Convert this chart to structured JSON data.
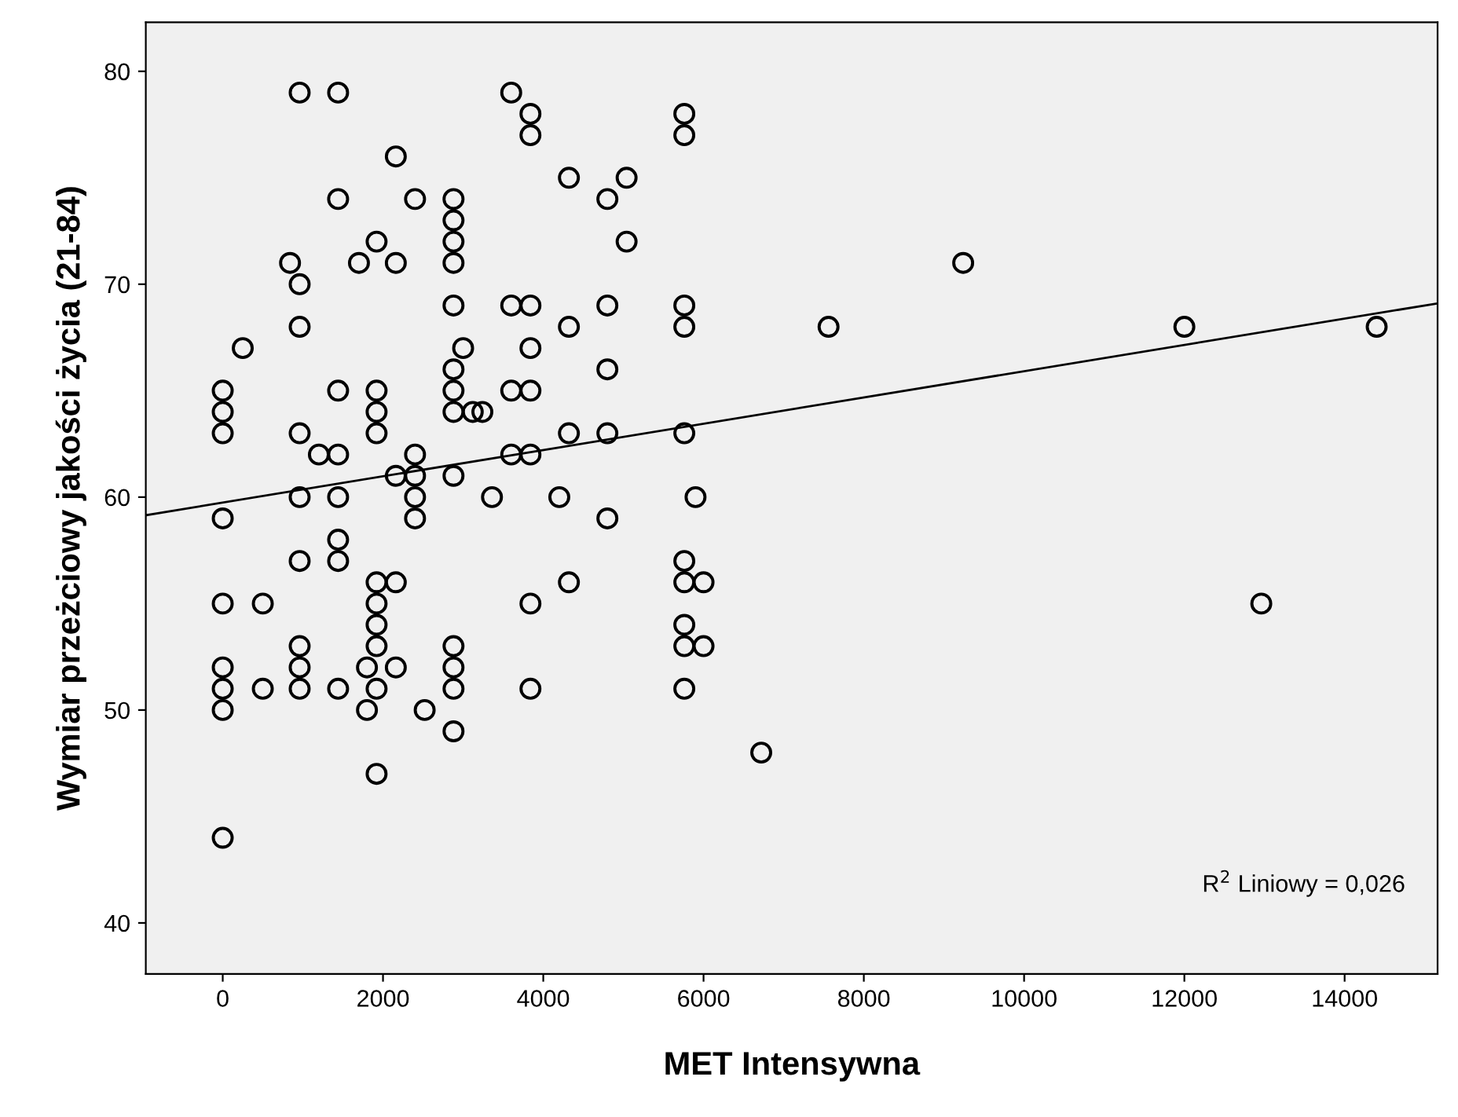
{
  "chart_data": {
    "type": "scatter",
    "xlabel": "MET Intensywna",
    "ylabel": "Wymiar przeżciowy jakości życia (21-84)",
    "xlim": [
      -960,
      15160
    ],
    "ylim": [
      37.6,
      82.3
    ],
    "xticks": [
      0,
      2000,
      4000,
      6000,
      8000,
      10000,
      12000,
      14000
    ],
    "yticks": [
      40,
      50,
      60,
      70,
      80
    ],
    "grid": false,
    "legend": false,
    "marker": "circle",
    "annotations": [
      "R$^{2}$ Liniowy = 0,026"
    ],
    "series": [
      {
        "color": "#000000",
        "x": [
          0,
          0,
          0,
          0,
          0,
          0,
          0,
          0,
          0,
          250,
          500,
          500,
          840,
          960,
          960,
          960,
          960,
          960,
          960,
          960,
          960,
          960,
          1200,
          1440,
          1440,
          1440,
          1440,
          1440,
          1440,
          1440,
          1440,
          1700,
          1800,
          1800,
          1920,
          1920,
          1920,
          1920,
          1920,
          1920,
          1920,
          1920,
          1920,
          1920,
          2160,
          2160,
          2160,
          2160,
          2160,
          2400,
          2400,
          2400,
          2400,
          2400,
          2520,
          2880,
          2880,
          2880,
          2880,
          2880,
          2880,
          2880,
          2880,
          2880,
          2880,
          2880,
          2880,
          2880,
          3000,
          3120,
          3240,
          3360,
          3600,
          3600,
          3600,
          3600,
          3840,
          3840,
          3840,
          3840,
          3840,
          3840,
          3840,
          3840,
          4200,
          4320,
          4320,
          4320,
          4320,
          4800,
          4800,
          4800,
          4800,
          4800,
          5040,
          5040,
          5760,
          5760,
          5760,
          5760,
          5760,
          5760,
          5760,
          5760,
          5760,
          5760,
          5900,
          6000,
          6000,
          6720,
          7560,
          9240,
          12000,
          12960,
          14400
        ],
        "values": [
          65,
          64,
          63,
          59,
          55,
          52,
          51,
          50,
          44,
          67,
          55,
          51,
          71,
          79,
          70,
          68,
          63,
          60,
          57,
          53,
          52,
          51,
          62,
          79,
          74,
          65,
          62,
          60,
          58,
          57,
          51,
          71,
          52,
          50,
          72,
          65,
          64,
          63,
          56,
          55,
          54,
          53,
          51,
          47,
          76,
          71,
          61,
          56,
          52,
          74,
          62,
          61,
          60,
          59,
          50,
          74,
          73,
          72,
          71,
          69,
          66,
          65,
          64,
          61,
          53,
          52,
          51,
          49,
          67,
          64,
          64,
          60,
          79,
          69,
          65,
          62,
          78,
          77,
          69,
          67,
          65,
          62,
          55,
          51,
          60,
          75,
          68,
          63,
          56,
          74,
          69,
          66,
          63,
          59,
          75,
          72,
          78,
          77,
          69,
          68,
          63,
          57,
          56,
          54,
          53,
          51,
          60,
          56,
          53,
          48,
          68,
          71,
          68,
          55,
          68
        ]
      },
      {
        "type": "line",
        "color": "#000000",
        "marker": "none",
        "x": [
          -960,
          15160
        ],
        "values": [
          59.15,
          69.1
        ]
      }
    ]
  }
}
